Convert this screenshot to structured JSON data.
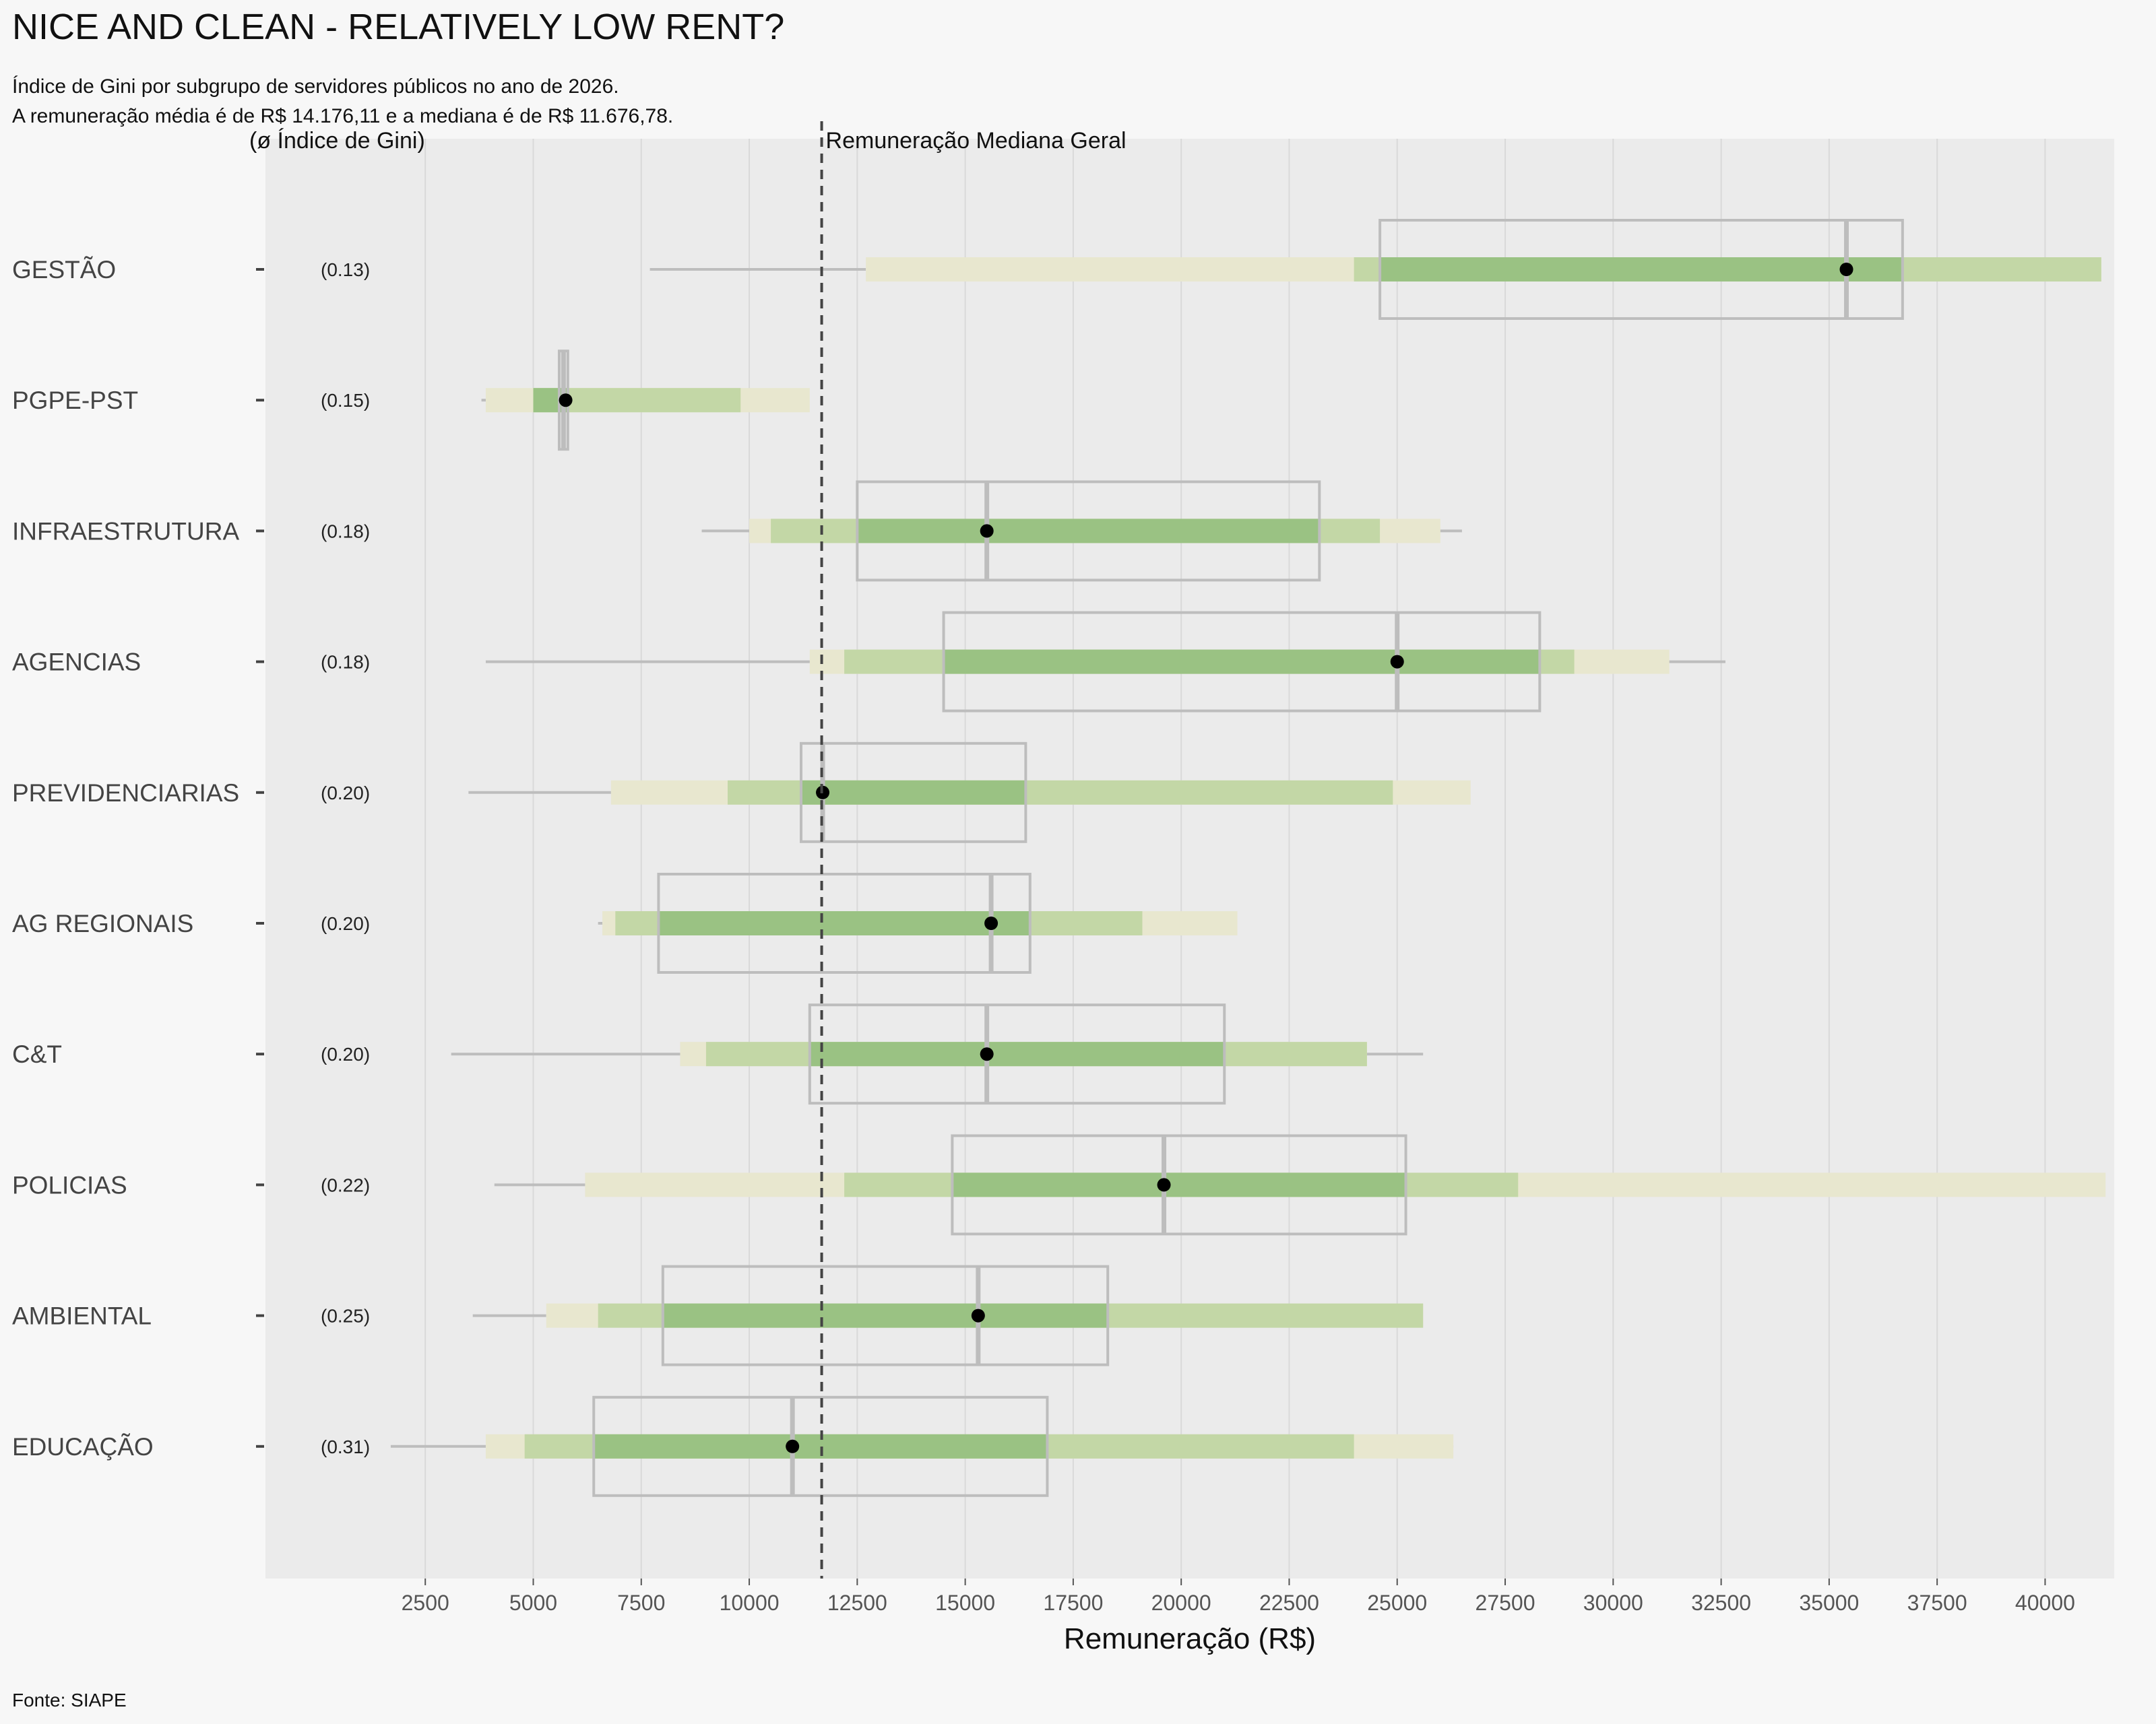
{
  "chart_data": {
    "type": "interval-boxplot",
    "title": "NICE AND CLEAN - RELATIVELY LOW RENT?",
    "subtitle_lines": [
      "Índice de Gini por subgrupo de servidores públicos no ano de 2026.",
      "A remuneração média é de R$ 14.176,11 e a mediana é de R$ 11.676,78."
    ],
    "gini_header": "(ø Índice de Gini)",
    "xlabel": "Remuneração (R$)",
    "caption": "Fonte: SIAPE",
    "median_line": {
      "value": 11676.78,
      "label": "Remuneração Mediana Geral"
    },
    "xlim": [
      -1200,
      41600
    ],
    "ticks": [
      2500,
      5000,
      7500,
      10000,
      12500,
      15000,
      17500,
      20000,
      22500,
      25000,
      27500,
      30000,
      32500,
      35000,
      37500,
      40000
    ],
    "grid": true,
    "colors": {
      "band_outer": "#e8e7cf",
      "band_mid": "#c3d7a6",
      "band_inner": "#9ac283",
      "box_stroke": "#bdbdbd",
      "whisker": "#bdbdbd",
      "point": "#000000",
      "panel": "#ebebeb",
      "gridline": "#d9d9d9"
    },
    "groups": [
      {
        "name": "GESTÃO",
        "gini": "(0.13)",
        "whisker": [
          7700,
          12700
        ],
        "outer": [
          12700,
          41300
        ],
        "mid": [
          24000,
          41300
        ],
        "inner": [
          24600,
          36700
        ],
        "box": [
          24600,
          36700
        ],
        "median": 35400,
        "point": 35400
      },
      {
        "name": "PGPE-PST",
        "gini": "(0.15)",
        "whisker": [
          3800,
          3900
        ],
        "outer": [
          3900,
          11400
        ],
        "mid": [
          5000,
          9800
        ],
        "inner": [
          5000,
          5800
        ],
        "box": [
          5600,
          5800
        ],
        "median": 5700,
        "point": 5750
      },
      {
        "name": "INFRAESTRUTURA",
        "gini": "(0.18)",
        "whisker": [
          8900,
          26500
        ],
        "outer": [
          10000,
          26000
        ],
        "mid": [
          10500,
          24600
        ],
        "inner": [
          12500,
          23200
        ],
        "box": [
          12500,
          23200
        ],
        "median": 15500,
        "point": 15500
      },
      {
        "name": "AGENCIAS",
        "gini": "(0.18)",
        "whisker": [
          3900,
          32600
        ],
        "outer": [
          11400,
          31300
        ],
        "mid": [
          12200,
          29100
        ],
        "inner": [
          14500,
          28300
        ],
        "box": [
          14500,
          28300
        ],
        "median": 25000,
        "point": 25000
      },
      {
        "name": "PREVIDENCIARIAS",
        "gini": "(0.20)",
        "whisker": [
          3500,
          6800
        ],
        "outer": [
          6800,
          26700
        ],
        "mid": [
          9500,
          24900
        ],
        "inner": [
          11200,
          16400
        ],
        "box": [
          11200,
          16400
        ],
        "median": 11700,
        "point": 11700
      },
      {
        "name": "AG REGIONAIS",
        "gini": "(0.20)",
        "whisker": [
          6500,
          6600
        ],
        "outer": [
          6600,
          21300
        ],
        "mid": [
          6900,
          19100
        ],
        "inner": [
          7900,
          16500
        ],
        "box": [
          7900,
          16500
        ],
        "median": 15600,
        "point": 15600
      },
      {
        "name": "C&T",
        "gini": "(0.20)",
        "whisker": [
          3100,
          25600
        ],
        "outer": [
          8400,
          24300
        ],
        "mid": [
          9000,
          24300
        ],
        "inner": [
          11400,
          21000
        ],
        "box": [
          11400,
          21000
        ],
        "median": 15500,
        "point": 15500
      },
      {
        "name": "POLICIAS",
        "gini": "(0.22)",
        "whisker": [
          4100,
          6200
        ],
        "outer": [
          6200,
          41400
        ],
        "mid": [
          12200,
          27800
        ],
        "inner": [
          14700,
          25200
        ],
        "box": [
          14700,
          25200
        ],
        "median": 19600,
        "point": 19600
      },
      {
        "name": "AMBIENTAL",
        "gini": "(0.25)",
        "whisker": [
          3600,
          5300
        ],
        "outer": [
          5300,
          25600
        ],
        "mid": [
          6500,
          25600
        ],
        "inner": [
          8000,
          18300
        ],
        "box": [
          8000,
          18300
        ],
        "median": 15300,
        "point": 15300
      },
      {
        "name": "EDUCAÇÃO",
        "gini": "(0.31)",
        "whisker": [
          1700,
          26300
        ],
        "outer": [
          3900,
          26300
        ],
        "mid": [
          4800,
          24000
        ],
        "inner": [
          6400,
          16900
        ],
        "box": [
          6400,
          16900
        ],
        "median": 11000,
        "point": 11000
      }
    ]
  }
}
